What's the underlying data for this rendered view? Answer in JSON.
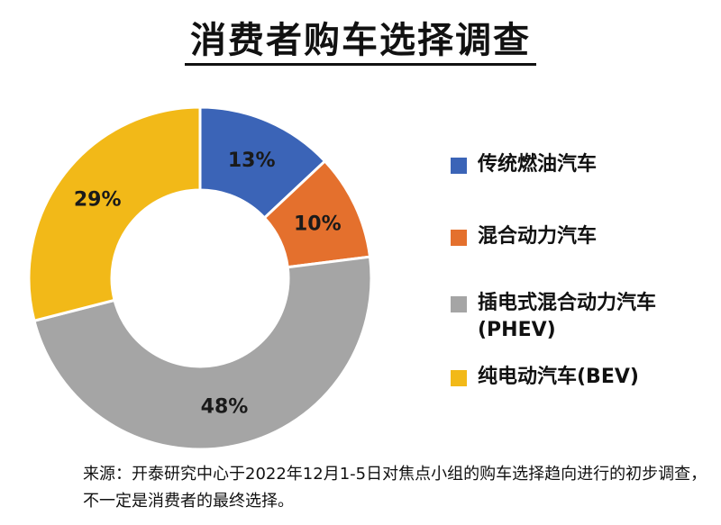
{
  "title": "消费者购车选择调查",
  "chart_data": {
    "type": "pie",
    "categories": [
      "传统燃油汽车",
      "混合动力汽车",
      "插电式混合动力汽车\n(PHEV)",
      "纯电动汽车(BEV)"
    ],
    "values": [
      13,
      10,
      48,
      29
    ],
    "labels": [
      "13%",
      "10%",
      "48%",
      "29%"
    ],
    "colors": [
      "#3b64b7",
      "#e4702d",
      "#a5a5a5",
      "#f2b918"
    ]
  },
  "source": "来源：开泰研究中心于2022年12月1-5日对焦点小组的购车选择趋向进行的初步调查，不一定是消费者的最终选择。"
}
